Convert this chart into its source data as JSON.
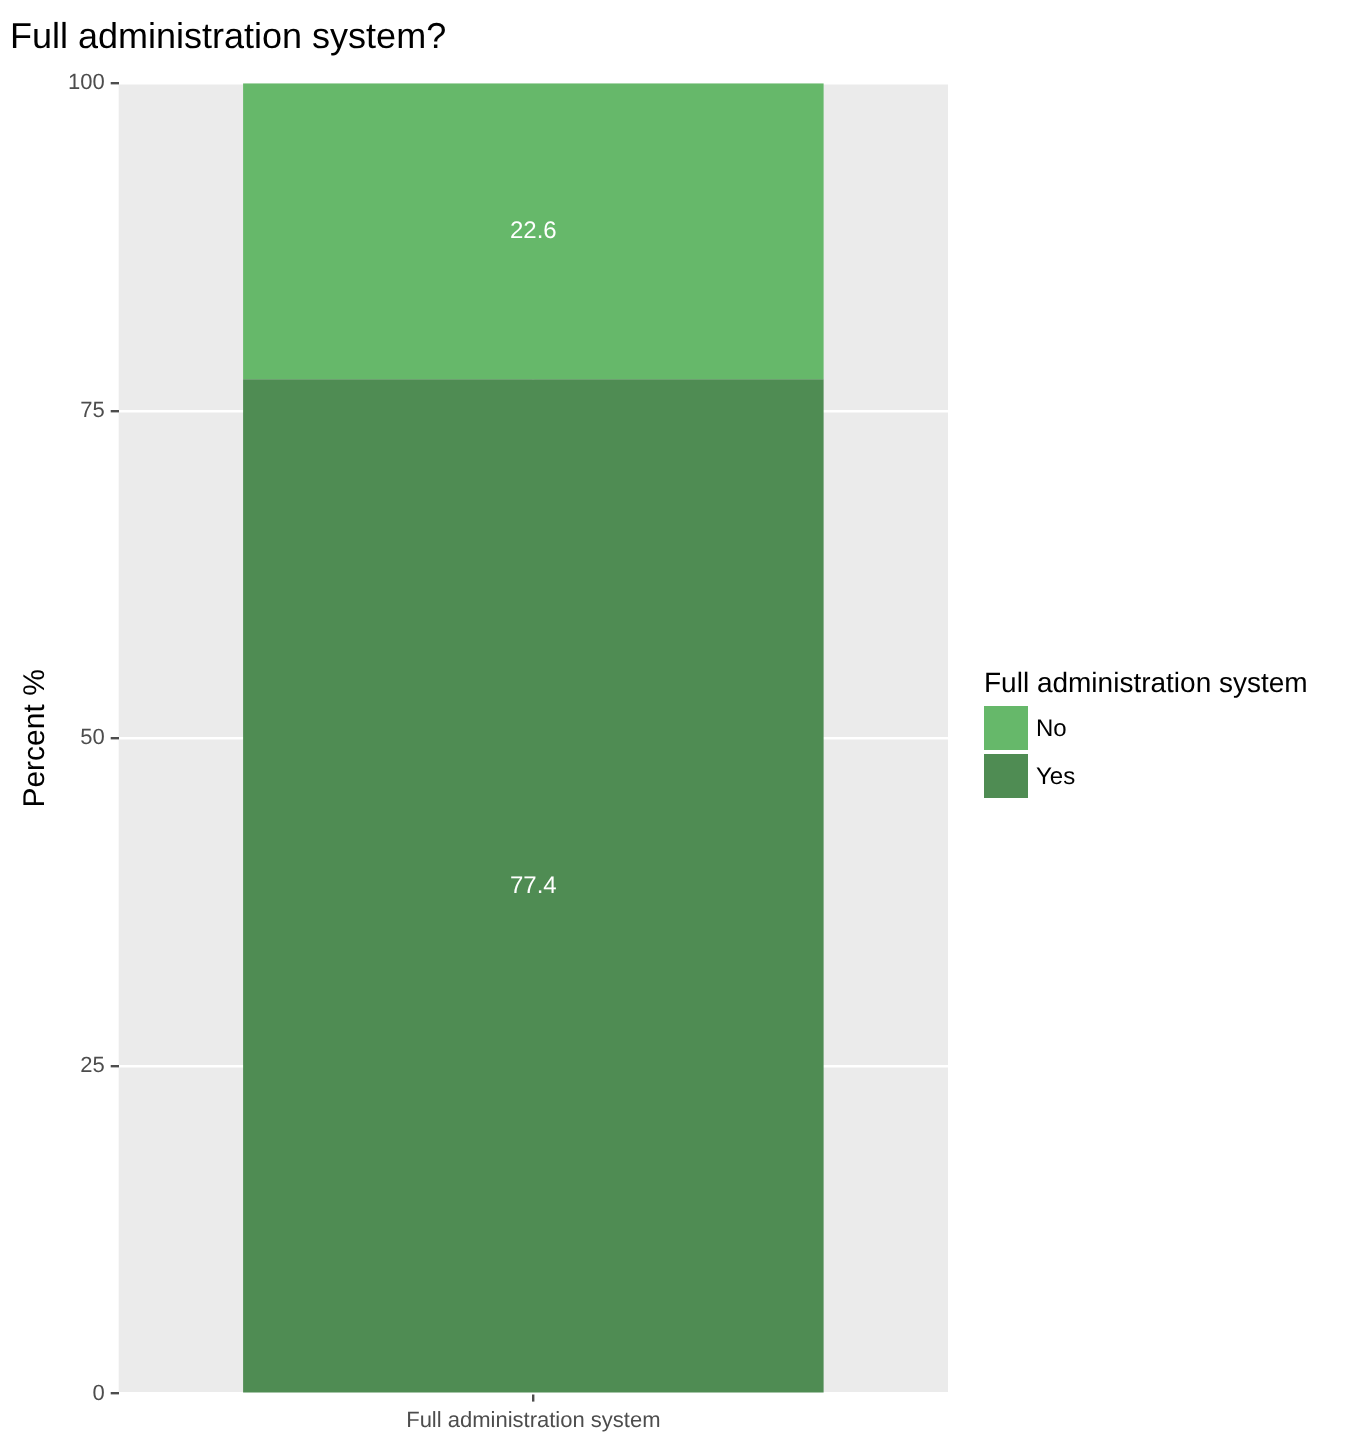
{
  "chart_data": {
    "type": "bar",
    "title": "Full administration system?",
    "ylabel": "Percent %",
    "legend_title": "Full administration system",
    "categories": [
      "Full administration system"
    ],
    "series": [
      {
        "name": "Yes",
        "color": "#4f8c53",
        "values": [
          77.4
        ]
      },
      {
        "name": "No",
        "color": "#66b86a",
        "values": [
          22.6
        ]
      }
    ],
    "stacked": true,
    "ylim": [
      0,
      100
    ],
    "yticks": [
      0,
      25,
      50,
      75,
      100
    ],
    "grid": true,
    "legend": "right",
    "data_labels": true
  }
}
